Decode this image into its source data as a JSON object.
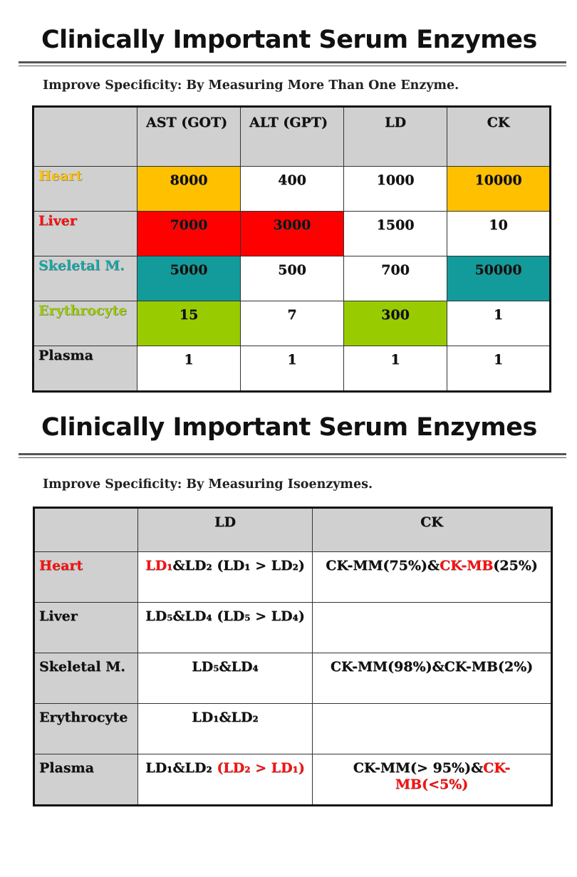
{
  "slide1": {
    "title": "Clinically Important Serum Enzymes",
    "subtitle": "Improve Specificity: By Measuring More Than One Enzyme.",
    "columns": [
      "",
      "AST (GOT)",
      "ALT (GPT)",
      "LD",
      "CK"
    ],
    "rows": [
      {
        "label": "Heart",
        "label_color": "#ffc000",
        "values": [
          "8000",
          "400",
          "1000",
          "10000"
        ],
        "cell_colors": [
          "#ffc000",
          "",
          "",
          "#ffc000"
        ]
      },
      {
        "label": "Liver",
        "label_color": "#ff1010",
        "values": [
          "7000",
          "3000",
          "1500",
          "10"
        ],
        "cell_colors": [
          "#ff0000",
          "#ff0000",
          "",
          ""
        ]
      },
      {
        "label": "Skeletal M.",
        "label_color": "#1aa6a6",
        "values": [
          "5000",
          "500",
          "700",
          "50000"
        ],
        "cell_colors": [
          "#139b9b",
          "",
          "",
          "#139b9b"
        ]
      },
      {
        "label": "Erythrocyte",
        "label_color": "#99cc00",
        "values": [
          "15",
          "7",
          "300",
          "1"
        ],
        "cell_colors": [
          "#99cc00",
          "",
          "#99cc00",
          ""
        ]
      },
      {
        "label": "Plasma",
        "label_color": "#111111",
        "values": [
          "1",
          "1",
          "1",
          "1"
        ],
        "cell_colors": [
          "",
          "",
          "",
          ""
        ]
      }
    ]
  },
  "slide2": {
    "title": "Clinically Important Serum Enzymes",
    "subtitle": "Improve Specificity: By Measuring Isoenzymes.",
    "columns": [
      "",
      "LD",
      "CK"
    ],
    "rows": [
      {
        "label": "Heart",
        "label_color": "#ff1010",
        "ld": "LD₁&LD₂ (LD₁ > LD₂)",
        "ck": "CK-MM(75%)&CK-MB(25%)"
      },
      {
        "label": "Liver",
        "label_color": "#111111",
        "ld": "LD₅&LD₄ (LD₅ > LD₄)",
        "ck": ""
      },
      {
        "label": "Skeletal M.",
        "label_color": "#111111",
        "ld": "LD₅&LD₄",
        "ck": "CK-MM(98%)&CK-MB(2%)"
      },
      {
        "label": "Erythrocyte",
        "label_color": "#111111",
        "ld": "LD₁&LD₂",
        "ck": ""
      },
      {
        "label": "Plasma",
        "label_color": "#111111",
        "ld": "LD₁&LD₂ (LD₂ > LD₁)",
        "ck": "CK-MM(> 95%)&CK-MB(<5%)"
      }
    ]
  }
}
